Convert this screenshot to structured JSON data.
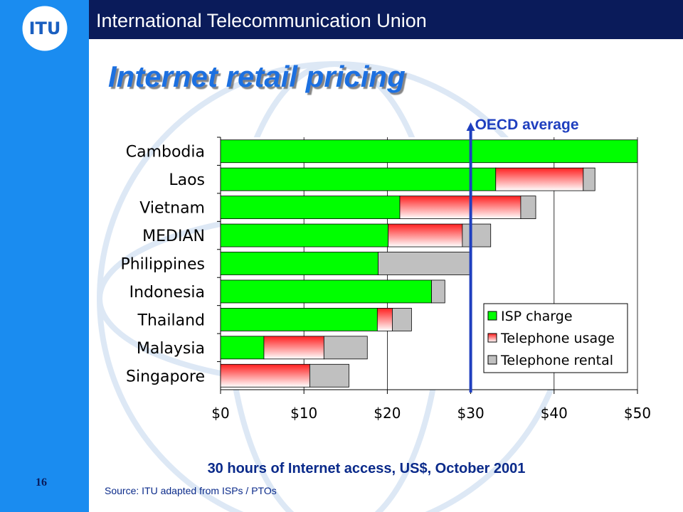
{
  "slide": {
    "organization": "International Telecommunication Union",
    "logo": "ITU",
    "number": "16",
    "source": "Source: ITU adapted from ISPs / PTOs"
  },
  "chart_data": {
    "type": "stacked-barh",
    "title": "Internet retail pricing",
    "x_label": "30 hours of Internet access, US$, October 2001",
    "categories": [
      "Cambodia",
      "Laos",
      "Vietnam",
      "MEDIAN",
      "Philippines",
      "Indonesia",
      "Thailand",
      "Malaysia",
      "Singapore"
    ],
    "series": [
      {
        "name": "ISP charge",
        "color": "#00ff00",
        "values": [
          50,
          33,
          21.5,
          20.1,
          18.9,
          25.3,
          18.8,
          5.2,
          0
        ]
      },
      {
        "name": "Telephone usage",
        "color": "#ff2020",
        "values": [
          0,
          10.5,
          14.5,
          8.9,
          0,
          0,
          1.8,
          7.2,
          10.7
        ]
      },
      {
        "name": "Telephone rental",
        "color": "#c0c0c0",
        "values": [
          0,
          1.4,
          1.8,
          3.4,
          11.1,
          1.6,
          2.3,
          5.2,
          4.7
        ]
      }
    ],
    "xlim": [
      0,
      50
    ],
    "xticks": [
      {
        "value": 0,
        "label": "$0"
      },
      {
        "value": 10,
        "label": "$10"
      },
      {
        "value": 20,
        "label": "$20"
      },
      {
        "value": 30,
        "label": "$30"
      },
      {
        "value": 40,
        "label": "$40"
      },
      {
        "value": 50,
        "label": "$50"
      }
    ],
    "grid": true,
    "legend": "lower right",
    "reference": {
      "label": "OECD average",
      "value": 30,
      "color": "#1f3fbf"
    }
  }
}
